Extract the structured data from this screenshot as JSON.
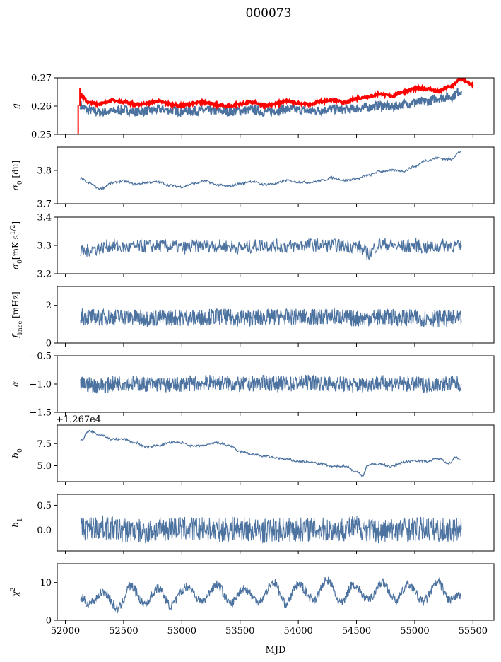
{
  "chart_data": {
    "type": "line",
    "title": "000073",
    "xlabel": "MJD",
    "xlim": [
      51930,
      55680
    ],
    "xticks": [
      52000,
      52500,
      53000,
      53500,
      54000,
      54500,
      55000,
      55500
    ],
    "xtick_labels": [
      "52000",
      "52500",
      "53000",
      "53500",
      "54000",
      "54500",
      "55000",
      "55500"
    ],
    "colors": {
      "series": "#4c72a0",
      "highlight": "#ff0000",
      "axis": "#000000"
    },
    "panels": [
      {
        "name": "g",
        "ylabel": "g",
        "ylim": [
          0.25,
          0.27
        ],
        "yticks": [
          0.25,
          0.26,
          0.27
        ],
        "ytick_labels": [
          "0.25",
          "0.26",
          "0.27"
        ],
        "series": [
          {
            "color": "#4c72a0",
            "x": [
              52130,
              52150,
              52200,
              52300,
              52400,
              52500,
              52600,
              52700,
              52800,
              52900,
              53000,
              53100,
              53200,
              53300,
              53400,
              53500,
              53600,
              53700,
              53800,
              53900,
              54000,
              54100,
              54200,
              54300,
              54400,
              54500,
              54600,
              54700,
              54800,
              54900,
              55000,
              55100,
              55200,
              55300,
              55400
            ],
            "y": [
              0.2605,
              0.2595,
              0.2585,
              0.2578,
              0.2582,
              0.2587,
              0.258,
              0.2584,
              0.2588,
              0.2586,
              0.2582,
              0.2584,
              0.2585,
              0.2583,
              0.258,
              0.2585,
              0.2587,
              0.258,
              0.2584,
              0.2589,
              0.2587,
              0.2583,
              0.2586,
              0.259,
              0.2588,
              0.2592,
              0.2596,
              0.2602,
              0.2597,
              0.2606,
              0.2614,
              0.2616,
              0.2628,
              0.2632,
              0.2653
            ]
          },
          {
            "color": "#ff0000",
            "x": [
              52130,
              52150,
              52200,
              52300,
              52400,
              52500,
              52600,
              52700,
              52800,
              52900,
              53000,
              53100,
              53200,
              53300,
              53400,
              53500,
              53600,
              53700,
              53800,
              53900,
              54000,
              54100,
              54200,
              54300,
              54400,
              54500,
              54600,
              54700,
              54800,
              54900,
              55000,
              55100,
              55200,
              55300,
              55400,
              55500
            ],
            "y": [
              0.264,
              0.263,
              0.2612,
              0.2608,
              0.262,
              0.2615,
              0.2605,
              0.261,
              0.2617,
              0.2607,
              0.2601,
              0.261,
              0.2614,
              0.2604,
              0.26,
              0.2607,
              0.2613,
              0.2603,
              0.2607,
              0.2618,
              0.261,
              0.2606,
              0.2617,
              0.2622,
              0.2612,
              0.2627,
              0.2633,
              0.2643,
              0.2636,
              0.265,
              0.2662,
              0.2662,
              0.2652,
              0.2668,
              0.2695,
              0.2675
            ]
          }
        ]
      },
      {
        "name": "sigma0-du",
        "ylabel": "σ0 [du]",
        "ylim": [
          3.7,
          3.87
        ],
        "yticks": [
          3.7,
          3.8
        ],
        "ytick_labels": [
          "3.7",
          "3.8"
        ],
        "series": [
          {
            "color": "#4c72a0",
            "x": [
              52130,
              52200,
              52300,
              52400,
              52500,
              52600,
              52700,
              52800,
              52900,
              53000,
              53100,
              53200,
              53300,
              53400,
              53500,
              53600,
              53700,
              53800,
              53900,
              54000,
              54100,
              54200,
              54300,
              54400,
              54500,
              54600,
              54700,
              54800,
              54900,
              55000,
              55100,
              55200,
              55300,
              55400
            ],
            "y": [
              3.776,
              3.762,
              3.745,
              3.762,
              3.768,
              3.758,
              3.764,
              3.765,
              3.755,
              3.751,
              3.76,
              3.768,
              3.757,
              3.752,
              3.76,
              3.767,
              3.758,
              3.76,
              3.77,
              3.765,
              3.764,
              3.77,
              3.778,
              3.77,
              3.775,
              3.785,
              3.797,
              3.8,
              3.798,
              3.812,
              3.83,
              3.837,
              3.833,
              3.857
            ]
          }
        ]
      },
      {
        "name": "sigma0-mk",
        "ylabel": "σ0[mK s^1/2]",
        "ylim": [
          3.2,
          3.4
        ],
        "yticks": [
          3.2,
          3.3,
          3.4
        ],
        "ytick_labels": [
          "3.2",
          "3.3",
          "3.4"
        ],
        "series": [
          {
            "color": "#4c72a0",
            "x": [
              52130,
              52250,
              52400,
              52500,
              52700,
              52900,
              53000,
              53200,
              53400,
              53500,
              53700,
              53900,
              54100,
              54300,
              54500,
              54600,
              54700,
              54900,
              55000,
              55100,
              55300,
              55400
            ],
            "y": [
              3.275,
              3.288,
              3.3,
              3.292,
              3.297,
              3.298,
              3.292,
              3.3,
              3.297,
              3.291,
              3.301,
              3.296,
              3.302,
              3.3,
              3.297,
              3.272,
              3.305,
              3.295,
              3.3,
              3.292,
              3.302,
              3.294
            ]
          }
        ]
      },
      {
        "name": "fknee",
        "ylabel": "fknee [mHz]",
        "ylim": [
          0,
          3
        ],
        "yticks": [
          0,
          2
        ],
        "ytick_labels": [
          "0",
          "2"
        ],
        "series": [
          {
            "color": "#4c72a0",
            "x": [
              52130,
              52300,
              52500,
              52700,
              52900,
              53100,
              53300,
              53500,
              53700,
              53900,
              54100,
              54300,
              54500,
              54700,
              54900,
              55100,
              55300,
              55400
            ],
            "y": [
              1.4,
              1.35,
              1.38,
              1.32,
              1.36,
              1.34,
              1.4,
              1.33,
              1.35,
              1.38,
              1.36,
              1.42,
              1.3,
              1.37,
              1.35,
              1.32,
              1.3,
              1.25
            ]
          }
        ]
      },
      {
        "name": "alpha",
        "ylabel": "α",
        "ylim": [
          -1.5,
          -0.5
        ],
        "yticks": [
          -1.5,
          -1.0,
          -0.5
        ],
        "ytick_labels": [
          "−1.5",
          "−1.0",
          "−0.5"
        ],
        "series": [
          {
            "color": "#4c72a0",
            "x": [
              52130,
              52300,
              52500,
              52700,
              52900,
              53100,
              53300,
              53500,
              53700,
              53900,
              54100,
              54300,
              54500,
              54700,
              54900,
              55100,
              55300,
              55400
            ],
            "y": [
              -1.0,
              -1.03,
              -0.98,
              -1.0,
              -1.02,
              -0.99,
              -0.97,
              -1.01,
              -0.98,
              -1.0,
              -0.97,
              -0.99,
              -1.02,
              -0.98,
              -1.0,
              -1.01,
              -0.99,
              -1.0
            ]
          }
        ]
      },
      {
        "name": "b0",
        "ylabel": "b0",
        "offset_label": "+1.267e4",
        "ylim": [
          3.2,
          9.6
        ],
        "yticks": [
          5.0,
          7.5
        ],
        "ytick_labels": [
          "5.0",
          "7.5"
        ],
        "series": [
          {
            "color": "#4c72a0",
            "x": [
              52130,
              52200,
              52300,
              52400,
              52500,
              52600,
              52700,
              52800,
              52900,
              53000,
              53100,
              53200,
              53300,
              53400,
              53500,
              53600,
              53700,
              53800,
              53900,
              54000,
              54100,
              54200,
              54300,
              54400,
              54500,
              54550,
              54600,
              54700,
              54800,
              54900,
              55000,
              55100,
              55200,
              55300,
              55350,
              55400
            ],
            "y": [
              7.8,
              8.9,
              8.5,
              8.0,
              8.0,
              7.6,
              7.1,
              7.3,
              7.6,
              7.6,
              7.2,
              7.3,
              7.6,
              7.3,
              6.6,
              6.3,
              6.1,
              5.9,
              5.7,
              5.5,
              5.4,
              5.2,
              4.9,
              5.0,
              4.3,
              3.9,
              5.1,
              5.2,
              4.9,
              5.4,
              5.6,
              5.5,
              5.8,
              5.3,
              6.0,
              5.7
            ]
          }
        ]
      },
      {
        "name": "b1",
        "ylabel": "b1",
        "ylim": [
          -0.42,
          0.72
        ],
        "yticks": [
          0.0,
          0.5
        ],
        "ytick_labels": [
          "0.0",
          "0.5"
        ],
        "series": [
          {
            "color": "#4c72a0",
            "x": [
              52130,
              52300,
              52500,
              52700,
              52900,
              53100,
              53300,
              53500,
              53700,
              53900,
              54100,
              54300,
              54500,
              54700,
              54900,
              55100,
              55300,
              55400
            ],
            "y": [
              0.02,
              0.05,
              0.0,
              -0.03,
              0.04,
              0.02,
              0.0,
              0.03,
              -0.02,
              0.01,
              0.02,
              0.0,
              0.05,
              -0.02,
              0.01,
              0.02,
              -0.01,
              0.0
            ]
          }
        ]
      },
      {
        "name": "chi2",
        "ylabel": "χ2",
        "ylim": [
          0,
          15
        ],
        "yticks": [
          0,
          10
        ],
        "ytick_labels": [
          "0",
          "10"
        ],
        "series": [
          {
            "color": "#4c72a0",
            "x": [
              52130,
              52200,
              52330,
              52450,
              52560,
              52680,
              52800,
              52900,
              53050,
              53170,
              53300,
              53420,
              53530,
              53660,
              53790,
              53890,
              54000,
              54130,
              54250,
              54370,
              54470,
              54600,
              54720,
              54840,
              54950,
              55070,
              55200,
              55300,
              55400
            ],
            "y": [
              6.0,
              4.5,
              7.5,
              3.0,
              9.0,
              4.5,
              8.5,
              4.0,
              9.0,
              5.0,
              9.5,
              4.5,
              8.5,
              5.0,
              10.0,
              4.5,
              9.5,
              5.5,
              10.5,
              4.5,
              9.5,
              5.5,
              10.0,
              5.5,
              9.5,
              5.0,
              10.0,
              5.5,
              6.5
            ]
          }
        ]
      }
    ]
  }
}
